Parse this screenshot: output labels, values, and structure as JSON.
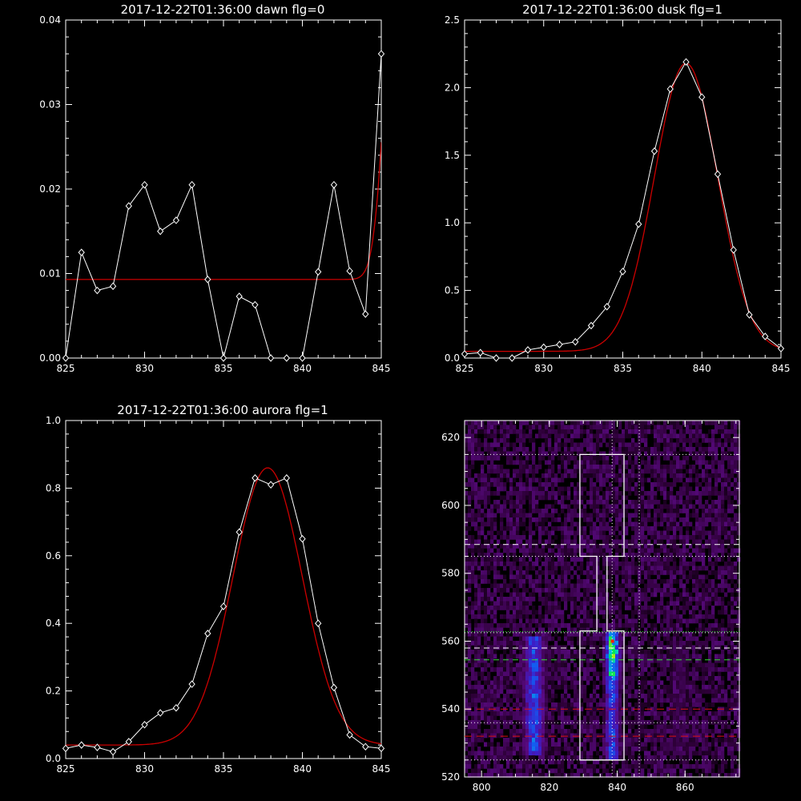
{
  "colors": {
    "background": "#000000",
    "data": "#ffffff",
    "fit": "#cc0000",
    "green_line": "#33dd33",
    "red_line": "#dd1111"
  },
  "chart_data": [
    {
      "type": "line",
      "title": "2017-12-22T01:36:00 dawn flg=0",
      "xlim": [
        825,
        845
      ],
      "ylim": [
        0,
        0.04
      ],
      "xticks": [
        "825",
        "830",
        "835",
        "840",
        "845"
      ],
      "yticks": [
        "0.00",
        "0.01",
        "0.02",
        "0.03",
        "0.04"
      ],
      "x": [
        825,
        826,
        827,
        828,
        829,
        830,
        831,
        832,
        833,
        834,
        835,
        836,
        837,
        838,
        839,
        840,
        841,
        842,
        843,
        844,
        845
      ],
      "y": [
        0.0,
        0.0125,
        0.008,
        0.0085,
        0.018,
        0.0205,
        0.015,
        0.0163,
        0.0205,
        0.0093,
        0.0,
        0.0073,
        0.0063,
        0.0,
        0.0,
        0.0,
        0.0102,
        0.0205,
        0.0103,
        0.0052,
        0.036
      ],
      "fit": {
        "baseline": 0.0093,
        "amplitude": 0.05,
        "center": 846.2,
        "sigma": 0.8
      }
    },
    {
      "type": "line",
      "title": "2017-12-22T01:36:00 dusk flg=1",
      "xlim": [
        825,
        845
      ],
      "ylim": [
        0,
        2.5
      ],
      "xticks": [
        "825",
        "830",
        "835",
        "840",
        "845"
      ],
      "yticks": [
        "0.0",
        "0.5",
        "1.0",
        "1.5",
        "2.0",
        "2.5"
      ],
      "x": [
        825,
        826,
        827,
        828,
        829,
        830,
        831,
        832,
        833,
        834,
        835,
        836,
        837,
        838,
        839,
        840,
        841,
        842,
        843,
        844,
        845
      ],
      "y": [
        0.03,
        0.04,
        0.0,
        0.0,
        0.06,
        0.08,
        0.1,
        0.12,
        0.24,
        0.38,
        0.64,
        0.99,
        1.53,
        1.99,
        2.19,
        1.93,
        1.36,
        0.8,
        0.32,
        0.16,
        0.07
      ],
      "fit": {
        "baseline": 0.05,
        "amplitude": 2.13,
        "center": 839.0,
        "sigma": 2.0
      }
    },
    {
      "type": "line",
      "title": "2017-12-22T01:36:00 aurora flg=1",
      "xlim": [
        825,
        845
      ],
      "ylim": [
        0,
        1.0
      ],
      "xticks": [
        "825",
        "830",
        "835",
        "840",
        "845"
      ],
      "yticks": [
        "0.0",
        "0.2",
        "0.4",
        "0.6",
        "0.8",
        "1.0"
      ],
      "x": [
        825,
        826,
        827,
        828,
        829,
        830,
        831,
        832,
        833,
        834,
        835,
        836,
        837,
        838,
        839,
        840,
        841,
        842,
        843,
        844,
        845
      ],
      "y": [
        0.03,
        0.04,
        0.033,
        0.02,
        0.05,
        0.1,
        0.135,
        0.15,
        0.22,
        0.37,
        0.45,
        0.67,
        0.83,
        0.81,
        0.83,
        0.65,
        0.4,
        0.21,
        0.07,
        0.035,
        0.03
      ],
      "fit": {
        "baseline": 0.04,
        "amplitude": 0.82,
        "center": 837.8,
        "sigma": 2.2
      }
    },
    {
      "type": "heatmap",
      "title": "",
      "xlim": [
        795,
        876
      ],
      "ylim": [
        520,
        625
      ],
      "xticks": [
        "800",
        "820",
        "840",
        "860"
      ],
      "yticks": [
        "520",
        "540",
        "560",
        "580",
        "600",
        "620"
      ],
      "columns": [
        {
          "center": 815.5,
          "width": 3.2,
          "y0": 527,
          "y1": 562,
          "peak": 0.55
        },
        {
          "center": 838.6,
          "width": 2.2,
          "y0": 525,
          "y1": 563,
          "peak": 1.0
        },
        {
          "center": 858.5,
          "width": 3.5,
          "y0": 527,
          "y1": 560,
          "peak": 0.14
        }
      ],
      "vlines_dotted": [
        838.5,
        846.5
      ],
      "hlines_dotted": [
        615,
        585,
        562.5,
        536,
        525
      ],
      "hlines_dashed_white": [
        588.5,
        558
      ],
      "hlines_dashed_green": [
        554.5
      ],
      "hlines_dotted_green": [
        562.8
      ],
      "hlines_dashed_red": [
        540,
        532
      ],
      "box": {
        "x0": 829,
        "x1": 842,
        "upper": [
          585,
          615
        ],
        "lower": [
          525,
          563
        ],
        "neck": [
          834,
          837
        ]
      }
    }
  ]
}
